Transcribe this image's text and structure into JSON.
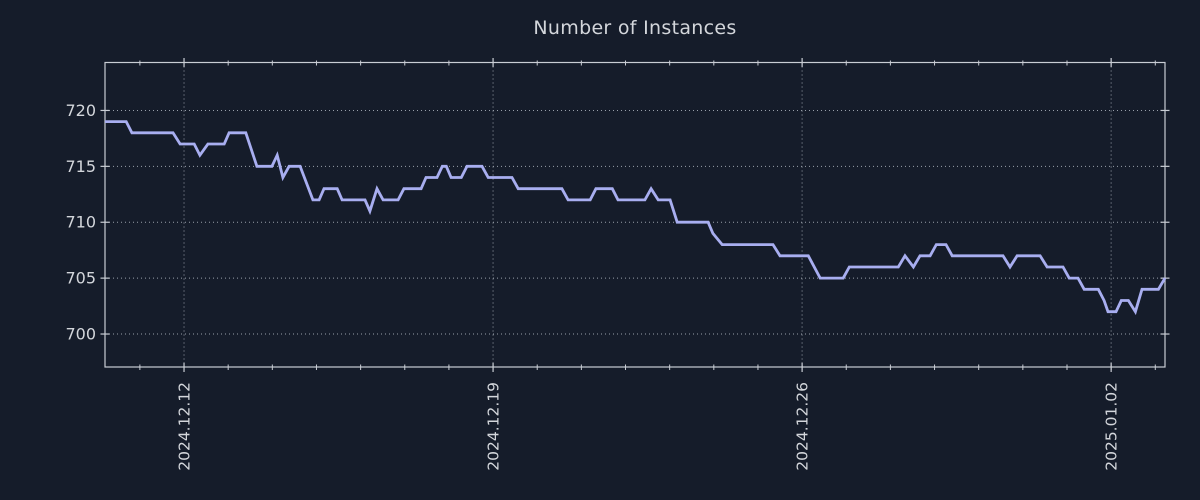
{
  "chart_data": {
    "type": "line",
    "title": "Number of Instances",
    "legend": "none",
    "grid": "dotted-major-both-axes",
    "colors": {
      "background": "#151c2a",
      "axis": "#c9cdd4",
      "grid": "#99a0aa",
      "text": "#d3d6db",
      "line": "#a8aef0"
    },
    "x_axis": {
      "unit": "days-from-series-start",
      "range": [
        0,
        24.01
      ],
      "major_ticks": [
        {
          "label": "2024.12.12",
          "day": 1.79
        },
        {
          "label": "2024.12.19",
          "day": 8.79
        },
        {
          "label": "2024.12.26",
          "day": 15.79
        },
        {
          "label": "2025.01.02",
          "day": 22.79
        }
      ],
      "first_minor_tick_day": 0.79,
      "minor_tick_interval_days": 1,
      "tick_label_rotation_deg": -90
    },
    "y_axis": {
      "range": [
        697.05,
        724.29
      ],
      "ticks": [
        700,
        705,
        710,
        715,
        720
      ]
    },
    "series": [
      {
        "name": "instances",
        "color": "#a8aef0",
        "points": [
          [
            0,
            719
          ],
          [
            0.48,
            719
          ],
          [
            0.61,
            718
          ],
          [
            1.54,
            718
          ],
          [
            1.7,
            717
          ],
          [
            2.02,
            717
          ],
          [
            2.15,
            716
          ],
          [
            2.33,
            717
          ],
          [
            2.7,
            717
          ],
          [
            2.81,
            718
          ],
          [
            3.19,
            718
          ],
          [
            3.44,
            715
          ],
          [
            3.78,
            715
          ],
          [
            3.9,
            716
          ],
          [
            4.03,
            714
          ],
          [
            4.17,
            715
          ],
          [
            4.42,
            715
          ],
          [
            4.71,
            712
          ],
          [
            4.85,
            712
          ],
          [
            4.96,
            713
          ],
          [
            5.26,
            713
          ],
          [
            5.37,
            712
          ],
          [
            5.89,
            712
          ],
          [
            6.0,
            711
          ],
          [
            6.16,
            713
          ],
          [
            6.3,
            712
          ],
          [
            6.64,
            712
          ],
          [
            6.77,
            713
          ],
          [
            7.16,
            713
          ],
          [
            7.27,
            714
          ],
          [
            7.52,
            714
          ],
          [
            7.64,
            715
          ],
          [
            7.73,
            715
          ],
          [
            7.84,
            714
          ],
          [
            8.07,
            714
          ],
          [
            8.2,
            715
          ],
          [
            8.54,
            715
          ],
          [
            8.68,
            714
          ],
          [
            9.22,
            714
          ],
          [
            9.36,
            713
          ],
          [
            10.35,
            713
          ],
          [
            10.49,
            712
          ],
          [
            10.99,
            712
          ],
          [
            11.12,
            713
          ],
          [
            11.49,
            713
          ],
          [
            11.62,
            712
          ],
          [
            12.23,
            712
          ],
          [
            12.37,
            713
          ],
          [
            12.53,
            712
          ],
          [
            12.8,
            712
          ],
          [
            12.96,
            710
          ],
          [
            13.66,
            710
          ],
          [
            13.77,
            709
          ],
          [
            13.98,
            708
          ],
          [
            15.13,
            708
          ],
          [
            15.29,
            707
          ],
          [
            15.93,
            707
          ],
          [
            16.2,
            705
          ],
          [
            16.72,
            705
          ],
          [
            16.86,
            706
          ],
          [
            17.97,
            706
          ],
          [
            18.12,
            707
          ],
          [
            18.31,
            706
          ],
          [
            18.46,
            707
          ],
          [
            18.69,
            707
          ],
          [
            18.83,
            708
          ],
          [
            19.05,
            708
          ],
          [
            19.19,
            707
          ],
          [
            20.34,
            707
          ],
          [
            20.5,
            706
          ],
          [
            20.66,
            707
          ],
          [
            21.18,
            707
          ],
          [
            21.34,
            706
          ],
          [
            21.7,
            706
          ],
          [
            21.84,
            705
          ],
          [
            22.04,
            705
          ],
          [
            22.18,
            704
          ],
          [
            22.5,
            704
          ],
          [
            22.63,
            703
          ],
          [
            22.72,
            702
          ],
          [
            22.9,
            702
          ],
          [
            23.02,
            703
          ],
          [
            23.18,
            703
          ],
          [
            23.34,
            702
          ],
          [
            23.49,
            704
          ],
          [
            23.86,
            704
          ],
          [
            24.01,
            705
          ]
        ]
      }
    ]
  }
}
